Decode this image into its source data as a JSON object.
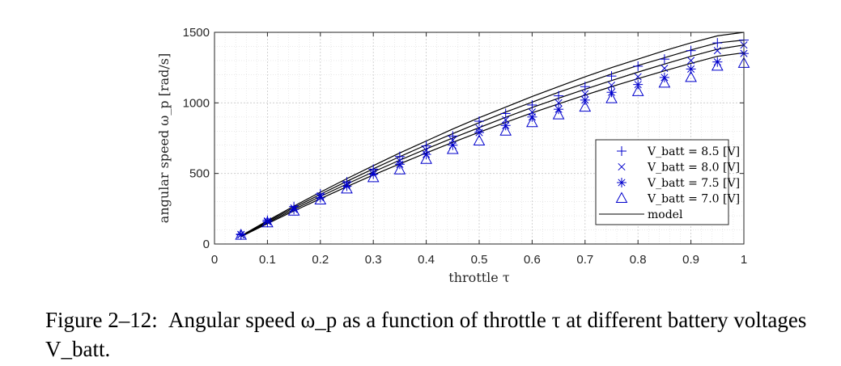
{
  "chart_data": {
    "type": "scatter",
    "xlabel": "throttle τ",
    "ylabel": "angular speed ω_p [rad/s]",
    "xlim": [
      0,
      1
    ],
    "ylim": [
      0,
      1500
    ],
    "xticks": [
      "0",
      "0.1",
      "0.2",
      "0.3",
      "0.4",
      "0.5",
      "0.6",
      "0.7",
      "0.8",
      "0.9",
      "1"
    ],
    "yticks": [
      "0",
      "500",
      "1000",
      "1500"
    ],
    "grid": true,
    "minor_grid": true,
    "legend_position": "bottom-right",
    "x": [
      0.05,
      0.1,
      0.15,
      0.2,
      0.25,
      0.3,
      0.35,
      0.4,
      0.45,
      0.5,
      0.55,
      0.6,
      0.65,
      0.7,
      0.75,
      0.8,
      0.85,
      0.9,
      0.95,
      1.0
    ],
    "series": [
      {
        "name": "V_batt = 8.5 [V]",
        "marker": "plus",
        "color": "#0000cc",
        "values": [
          70,
          168,
          265,
          355,
          440,
          530,
          620,
          695,
          765,
          870,
          925,
          985,
          1050,
          1115,
          1190,
          1260,
          1310,
          1370,
          1425,
          1445
        ]
      },
      {
        "name": "V_batt = 8.0 [V]",
        "marker": "x",
        "color": "#0000cc",
        "values": [
          68,
          163,
          255,
          342,
          425,
          510,
          590,
          665,
          735,
          820,
          880,
          935,
          1000,
          1065,
          1125,
          1185,
          1245,
          1300,
          1370,
          1410
        ]
      },
      {
        "name": "V_batt = 7.5 [V]",
        "marker": "asterisk",
        "color": "#0000cc",
        "values": [
          65,
          158,
          245,
          328,
          410,
          495,
          565,
          635,
          700,
          790,
          840,
          900,
          955,
          1020,
          1075,
          1130,
          1180,
          1240,
          1290,
          1350
        ]
      },
      {
        "name": "V_batt = 7.0 [V]",
        "marker": "triangle",
        "color": "#0000cc",
        "values": [
          62,
          150,
          233,
          312,
          390,
          470,
          525,
          600,
          670,
          730,
          800,
          860,
          915,
          970,
          1030,
          1080,
          1140,
          1180,
          1260,
          1280
        ]
      },
      {
        "name": "model",
        "marker": "line",
        "color": "#000000",
        "lines": [
          {
            "values": [
              58,
              165,
              268,
              367,
              463,
              555,
              645,
              730,
              815,
              895,
              970,
              1045,
              1115,
              1185,
              1250,
              1310,
              1370,
              1425,
              1475,
              1500
            ]
          },
          {
            "values": [
              56,
              158,
              257,
              352,
              444,
              533,
              619,
              702,
              782,
              860,
              935,
              1005,
              1075,
              1140,
              1205,
              1265,
              1320,
              1375,
              1425,
              1445
            ]
          },
          {
            "values": [
              54,
              151,
              245,
              337,
              425,
              511,
              594,
              674,
              751,
              825,
              898,
              967,
              1033,
              1097,
              1158,
              1218,
              1275,
              1330,
              1380,
              1410
            ]
          },
          {
            "values": [
              52,
              144,
              234,
              321,
              406,
              489,
              568,
              645,
              720,
              792,
              862,
              929,
              993,
              1055,
              1115,
              1172,
              1227,
              1280,
              1330,
              1355
            ]
          }
        ]
      }
    ],
    "legend": [
      {
        "marker": "plus",
        "label": "V_batt = 8.5 [V]"
      },
      {
        "marker": "x",
        "label": "V_batt = 8.0 [V]"
      },
      {
        "marker": "asterisk",
        "label": "V_batt = 7.5 [V]"
      },
      {
        "marker": "triangle",
        "label": "V_batt = 7.0 [V]"
      },
      {
        "marker": "line",
        "label": "model"
      }
    ]
  },
  "caption": {
    "lead": "Figure 2–12:",
    "text": "Angular speed ω_p as a function of throttle τ at different battery voltages V_batt."
  }
}
